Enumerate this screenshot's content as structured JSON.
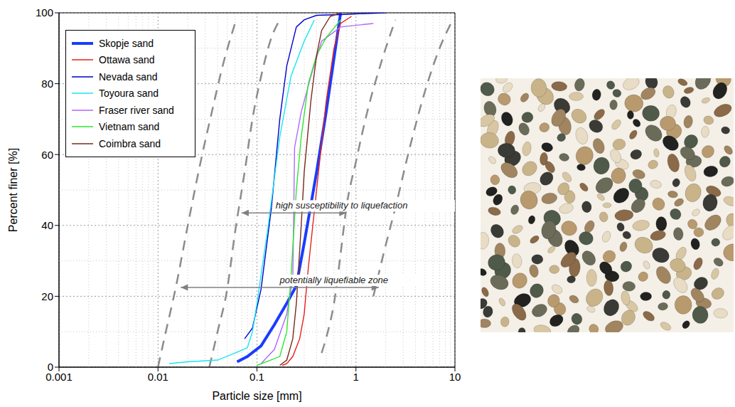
{
  "chart_data": {
    "type": "line",
    "xlabel": "Particle size [mm]",
    "ylabel": "Percent finer [%]",
    "log": "x",
    "xlim": [
      0.001,
      10
    ],
    "xticks": [
      0.001,
      0.01,
      0.1,
      1,
      10
    ],
    "ylim": [
      0,
      100
    ],
    "yticks": [
      0,
      20,
      40,
      60,
      80,
      100
    ],
    "grid": true,
    "legend": "upper left",
    "series": [
      {
        "name": "Skopje sand",
        "color": "#1a3cff",
        "x": [
          0.063,
          0.08,
          0.11,
          0.15,
          0.2,
          0.25,
          0.3,
          0.4,
          0.5,
          0.7
        ],
        "values": [
          1.5,
          3,
          6,
          12,
          18,
          23,
          35,
          55,
          72,
          100
        ]
      },
      {
        "name": "Ottawa sand",
        "color": "#e8201a",
        "x": [
          0.18,
          0.2,
          0.23,
          0.27,
          0.3,
          0.33,
          0.4,
          0.5,
          0.6,
          0.7,
          0.9
        ],
        "values": [
          0.5,
          1,
          3,
          8,
          15,
          28,
          50,
          75,
          90,
          97,
          99
        ]
      },
      {
        "name": "Nevada sand",
        "color": "#0000d0",
        "x": [
          0.075,
          0.09,
          0.11,
          0.14,
          0.17,
          0.2,
          0.25,
          0.3,
          0.4,
          0.7,
          1,
          2
        ],
        "values": [
          8,
          11,
          22,
          45,
          70,
          85,
          96,
          98,
          99.3,
          99.5,
          99.7,
          100
        ]
      },
      {
        "name": "Toyoura sand",
        "color": "#19e6f0",
        "x": [
          0.013,
          0.02,
          0.04,
          0.06,
          0.08,
          0.09,
          0.1,
          0.13,
          0.17,
          0.22,
          0.3,
          0.38
        ],
        "values": [
          1,
          1.5,
          2,
          4,
          5.5,
          10,
          18,
          40,
          65,
          82,
          92,
          98
        ]
      },
      {
        "name": "Fraser river sand",
        "color": "#b266ff",
        "x": [
          0.11,
          0.15,
          0.2,
          0.23,
          0.24,
          0.28,
          0.35,
          0.45,
          0.7,
          1.5
        ],
        "values": [
          1,
          5,
          15,
          25,
          62,
          72,
          82,
          92,
          96,
          97
        ]
      },
      {
        "name": "Vietnam sand",
        "color": "#2ee62e",
        "x": [
          0.1,
          0.17,
          0.2,
          0.22,
          0.25,
          0.28,
          0.33,
          0.4,
          0.5,
          0.7
        ],
        "values": [
          0.5,
          3,
          10,
          25,
          50,
          65,
          80,
          88,
          93,
          98
        ]
      },
      {
        "name": "Coimbra sand",
        "color": "#7a2a1a",
        "x": [
          0.17,
          0.2,
          0.23,
          0.25,
          0.28,
          0.3,
          0.35,
          0.4,
          0.45,
          0.55,
          0.7
        ],
        "values": [
          0.5,
          2,
          8,
          18,
          40,
          55,
          75,
          88,
          95,
          99,
          100
        ]
      }
    ],
    "boundaries": [
      {
        "color": "#8c8c8c",
        "line_style": "dashed",
        "x": [
          0.01,
          0.012,
          0.015,
          0.02,
          0.027,
          0.035,
          0.045,
          0.06
        ],
        "values": [
          0,
          10,
          22,
          40,
          58,
          72,
          85,
          97
        ]
      },
      {
        "color": "#8c8c8c",
        "line_style": "dashed",
        "x": [
          0.033,
          0.04,
          0.05,
          0.06,
          0.075,
          0.09,
          0.11,
          0.14,
          0.17
        ],
        "values": [
          0,
          10,
          22,
          38,
          55,
          70,
          82,
          93,
          98
        ]
      },
      {
        "color": "#8c8c8c",
        "line_style": "dashed",
        "x": [
          0.45,
          0.52,
          0.6,
          0.7,
          0.8,
          1.0,
          1.3,
          1.8,
          2.5
        ],
        "values": [
          4,
          10,
          18,
          32,
          45,
          58,
          72,
          86,
          98
        ]
      },
      {
        "color": "#8c8c8c",
        "line_style": "dashed",
        "x": [
          1.5,
          1.9,
          2.5,
          3.5,
          5,
          7,
          9.5
        ],
        "values": [
          20,
          32,
          45,
          62,
          78,
          90,
          98
        ]
      }
    ],
    "annotations": [
      {
        "text": "high susceptibility to liquefaction",
        "x": [
          0.07,
          0.8
        ],
        "y": 43.5
      },
      {
        "text": "potentially liquefiable zone",
        "x": [
          0.017,
          1.7
        ],
        "y": 22.5
      }
    ]
  }
}
